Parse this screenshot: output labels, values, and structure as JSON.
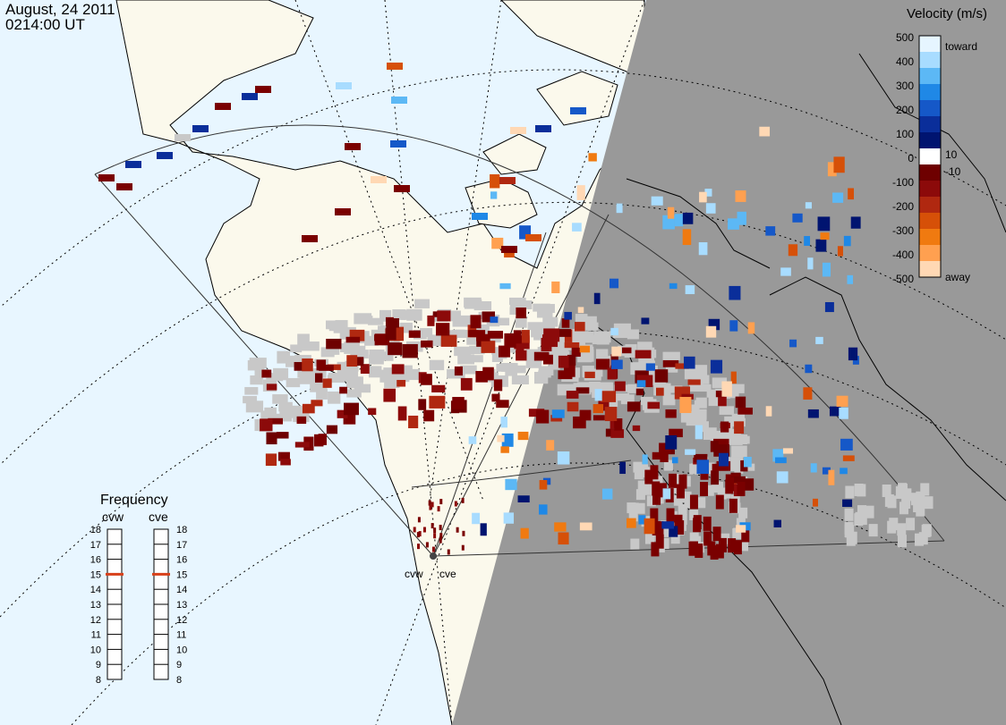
{
  "title": {
    "date": "August, 24 2011",
    "time": "0214:00 UT"
  },
  "colors": {
    "ocean": "#e8f6ff",
    "land_day": "#fbf9ec",
    "night": "#999999",
    "ground_scatter": "#c8c8c8",
    "away_strong": "#7a0000",
    "toward_strong": "#001a80"
  },
  "velocity_scale": {
    "title": "Velocity (m/s)",
    "toward_label": "toward",
    "away_label": "away",
    "ticks": [
      "500",
      "400",
      "300",
      "200",
      "100",
      "10",
      "0",
      "-10",
      "-100",
      "-200",
      "-300",
      "-400",
      "-500"
    ],
    "colors_top_to_bottom": [
      "#e6f5ff",
      "#a8dcff",
      "#5cb8f5",
      "#1f88e6",
      "#1558c8",
      "#0a2e9a",
      "#001470",
      "#ffffff",
      "#6e0000",
      "#8c0a0a",
      "#b02810",
      "#d65008",
      "#f07a10",
      "#ffa050",
      "#ffd8b4"
    ]
  },
  "frequency": {
    "title": "Frequency",
    "radars": [
      "cvw",
      "cve"
    ],
    "ticks": [
      "18",
      "17",
      "16",
      "15",
      "14",
      "13",
      "12",
      "11",
      "10",
      "9",
      "8"
    ],
    "cvw_mhz": 15,
    "cve_mhz": 15
  },
  "radar_sites": [
    "cvw",
    "cve"
  ]
}
